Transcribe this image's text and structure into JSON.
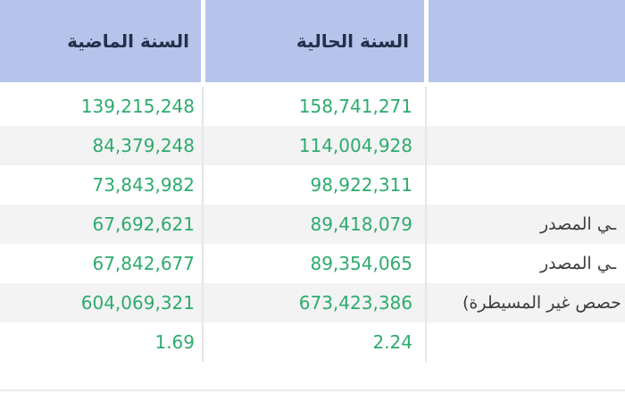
{
  "table": {
    "header": {
      "current_year": "السنة الحالية",
      "previous_year": "السنة الماضية"
    },
    "rows": [
      {
        "label": "",
        "current_year": "158,741,271",
        "previous_year": "139,215,248"
      },
      {
        "label": "",
        "current_year": "114,004,928",
        "previous_year": "84,379,248"
      },
      {
        "label": "",
        "current_year": "98,922,311",
        "previous_year": "73,843,982"
      },
      {
        "label": "ـي المصدر",
        "current_year": "89,418,079",
        "previous_year": "67,692,621"
      },
      {
        "label": "ـي المصدر",
        "current_year": "89,354,065",
        "previous_year": "67,842,677"
      },
      {
        "label": "حصص غير المسيطرة)",
        "current_year": "673,423,386",
        "previous_year": "604,069,321"
      },
      {
        "label": "",
        "current_year": "2.24",
        "previous_year": "1.69"
      }
    ]
  },
  "colors": {
    "header_bg": "#b6c3ea",
    "header_text": "#24304a",
    "value_text": "#2dab6c",
    "row_alt_bg": "#f3f3f3",
    "label_text": "#3d3d3d",
    "separator": "#e6e6e6"
  }
}
